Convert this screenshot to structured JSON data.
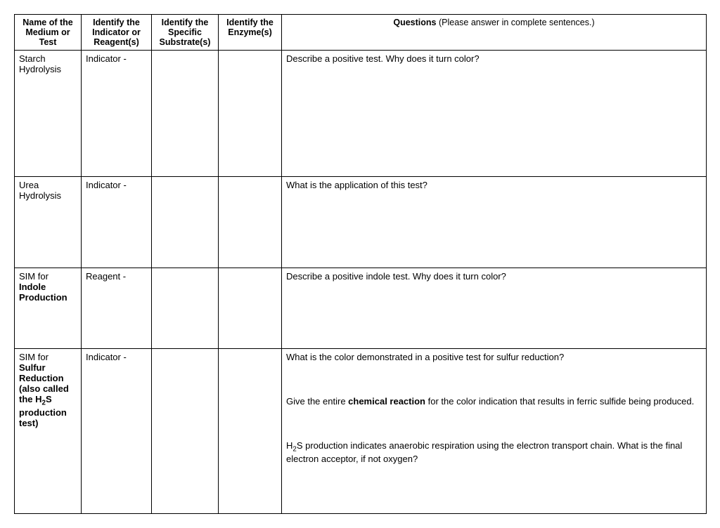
{
  "headers": {
    "c1": "Name of the Medium or Test",
    "c2": "Identify the Indicator or Reagent(s)",
    "c3": "Identify the Specific Substrate(s)",
    "c4": "Identify the Enzyme(s)",
    "c5_prefix": "Questions ",
    "c5_note": "(Please answer in complete sentences.)"
  },
  "rows": [
    {
      "name_plain": "Starch Hydrolysis",
      "name_bold": "",
      "name_suffix": "",
      "indicator": "Indicator -",
      "substrate": "",
      "enzyme": "",
      "questions": [
        "Describe a positive test.  Why does it turn color?"
      ],
      "height_class": "row-tall"
    },
    {
      "name_plain": "Urea Hydrolysis",
      "name_bold": "",
      "name_suffix": "",
      "indicator": "Indicator -",
      "substrate": "",
      "enzyme": "",
      "questions": [
        "What is the application of this test?"
      ],
      "height_class": "row-med"
    },
    {
      "name_plain": "SIM for ",
      "name_bold": "Indole Production",
      "name_suffix": "",
      "indicator": "Reagent -",
      "substrate": "",
      "enzyme": "",
      "questions": [
        "Describe a positive indole test.  Why does it turn color?"
      ],
      "height_class": "row-short"
    },
    {
      "name_plain": "SIM for ",
      "name_bold": "Sulfur Reduction (also called the H₂S production test)",
      "name_suffix": "",
      "indicator": "Indicator -",
      "substrate": "",
      "enzyme": "",
      "questions_html": [
        "What is the color demonstrated in a positive test for sulfur reduction?",
        "Give the entire <b>chemical reaction</b> for the color indication that results in ferric sulfide being produced.",
        "H<sub>2</sub>S production indicates anaerobic respiration using the electron transport chain.  What is the final electron acceptor, if not oxygen?"
      ],
      "height_class": "row-big"
    }
  ]
}
